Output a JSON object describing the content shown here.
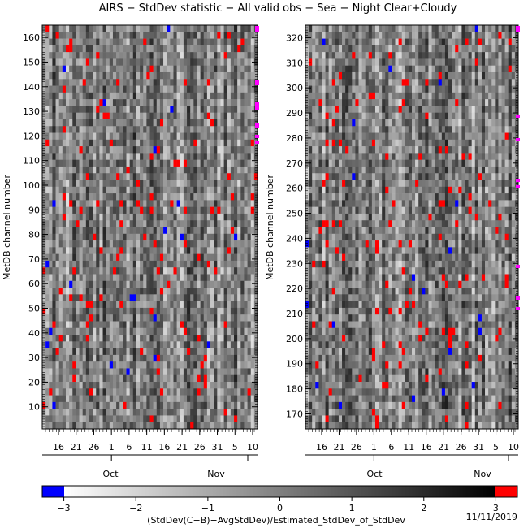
{
  "title": "AIRS − StdDev statistic − All valid obs − Sea − Night Clear+Cloudy",
  "footer_date": "11/11/2019",
  "colorbar_label": "(StdDev(C−B)−AvgStdDev)/Estimated_StdDev_of_StdDev",
  "colors": {
    "low": "#0000ff",
    "high": "#ff0000",
    "marker": "#ff00ff"
  },
  "chart_data": [
    {
      "type": "heatmap",
      "panel": "left",
      "ylabel": "MetDB channel number",
      "ylim": [
        1,
        165
      ],
      "yticks": [
        10,
        20,
        30,
        40,
        50,
        60,
        70,
        80,
        90,
        100,
        110,
        120,
        130,
        140,
        150,
        160
      ],
      "xtick_labels": [
        "16",
        "21",
        "26",
        "1",
        "6",
        "11",
        "16",
        "21",
        "26",
        "31",
        "5",
        "10"
      ],
      "month_labels": [
        "Oct",
        "Nov"
      ],
      "grid": false
    },
    {
      "type": "heatmap",
      "panel": "right",
      "ylabel": "MetDB channel number",
      "ylim": [
        164,
        325
      ],
      "yticks": [
        170,
        180,
        190,
        200,
        210,
        220,
        230,
        240,
        250,
        260,
        270,
        280,
        290,
        300,
        310,
        320
      ],
      "xtick_labels": [
        "16",
        "21",
        "26",
        "1",
        "6",
        "11",
        "16",
        "21",
        "26",
        "31",
        "5",
        "10"
      ],
      "month_labels": [
        "Oct",
        "Nov"
      ],
      "grid": false
    },
    {
      "type": "colorbar",
      "range": [
        -3.3,
        3.3
      ],
      "ticks": [
        "−3",
        "−2",
        "−1",
        "0",
        "1",
        "2",
        "3"
      ],
      "tick_values": [
        -3,
        -2,
        -1,
        0,
        1,
        2,
        3
      ]
    }
  ]
}
